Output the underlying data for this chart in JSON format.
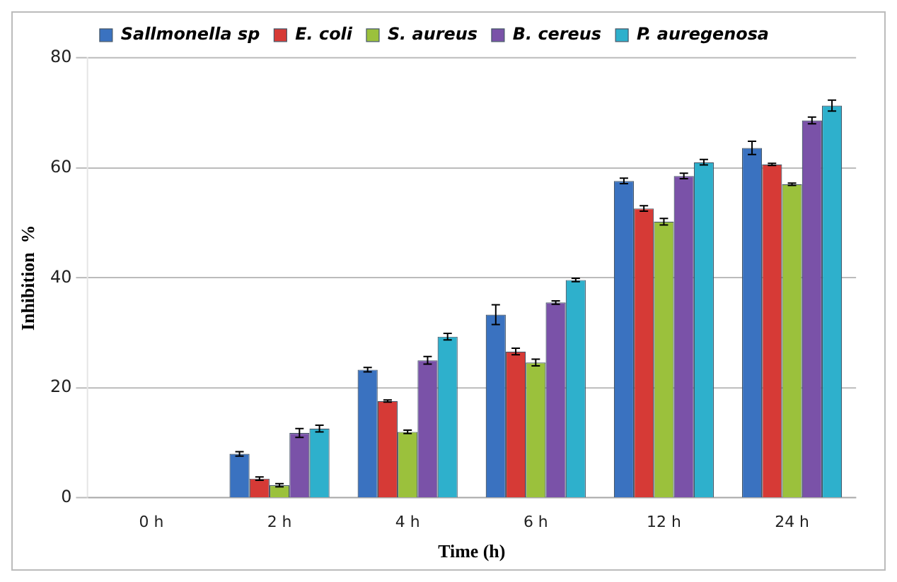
{
  "chart_data": {
    "type": "bar",
    "xlabel": "Time (h)",
    "ylabel": "Inhibition  %",
    "categories": [
      "0 h",
      "2 h",
      "4 h",
      "6 h",
      "12 h",
      "24 h"
    ],
    "series": [
      {
        "name": "Sallmonella sp",
        "color": "#3a72c0",
        "values": [
          0,
          8,
          23.3,
          33.3,
          57.6,
          63.6
        ],
        "errors": [
          null,
          0.4,
          0.4,
          1.8,
          0.5,
          1.2
        ]
      },
      {
        "name": "E. coli",
        "color": "#d63a36",
        "values": [
          0,
          3.5,
          17.6,
          26.6,
          52.6,
          60.6
        ],
        "errors": [
          null,
          0.3,
          0.2,
          0.6,
          0.5,
          0.2
        ]
      },
      {
        "name": "S. aureus",
        "color": "#9bc13c",
        "values": [
          0,
          2.3,
          12,
          24.6,
          50.2,
          57
        ],
        "errors": [
          null,
          0.3,
          0.3,
          0.6,
          0.6,
          0.2
        ]
      },
      {
        "name": "B. cereus",
        "color": "#7a52a8",
        "values": [
          0,
          11.8,
          25,
          35.5,
          58.5,
          68.6
        ],
        "errors": [
          null,
          0.8,
          0.7,
          0.3,
          0.5,
          0.6
        ]
      },
      {
        "name": "P. auregenosa",
        "color": "#2eb0cc",
        "values": [
          0,
          12.6,
          29.3,
          39.6,
          61,
          71.3
        ],
        "errors": [
          null,
          0.6,
          0.6,
          0.3,
          0.5,
          1
        ]
      }
    ],
    "ylim": [
      0,
      80
    ],
    "yticks": [
      0,
      20,
      40,
      60,
      80
    ],
    "grid": "y",
    "legend": "top"
  }
}
